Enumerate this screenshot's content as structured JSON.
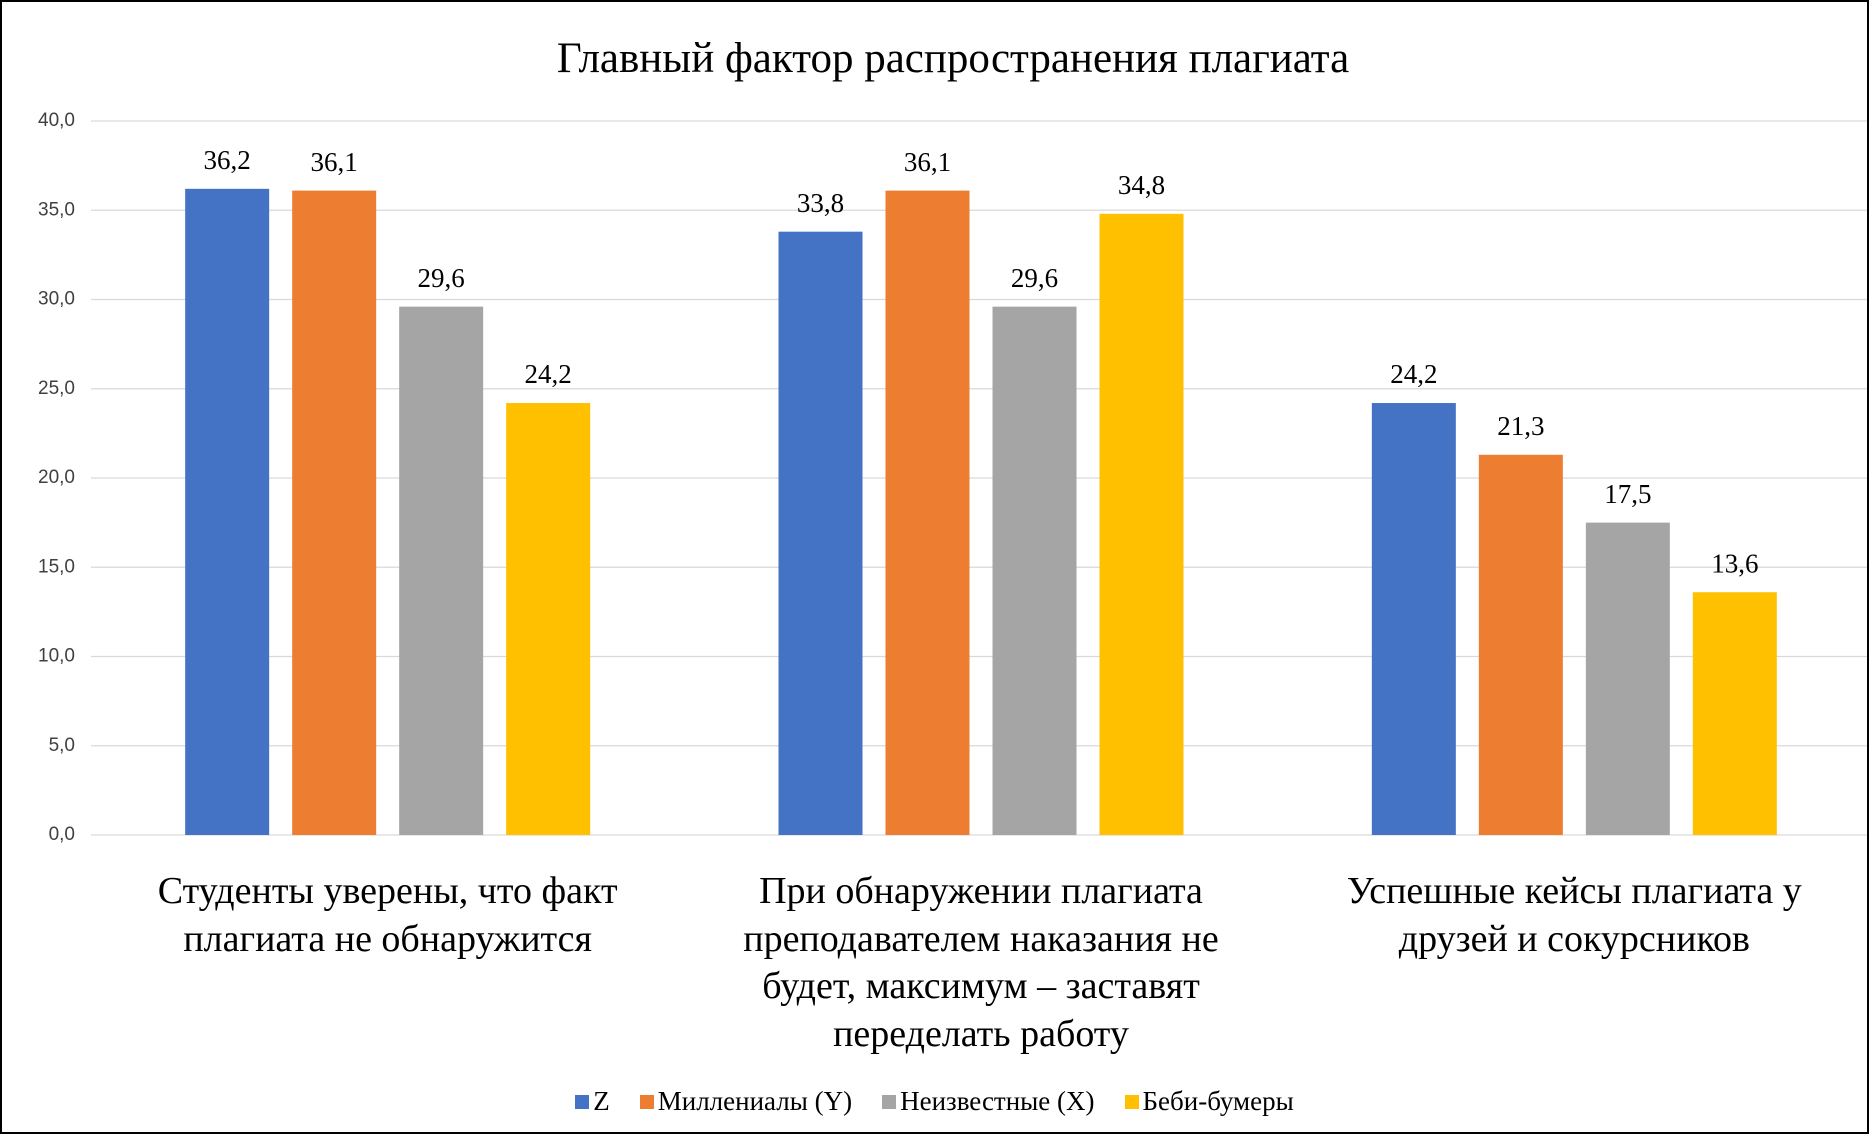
{
  "chart_data": {
    "type": "bar",
    "title": "Главный фактор распространения плагиата",
    "categories": [
      "Студенты уверены, что факт плагиата не обнаружится",
      "При обнаружении плагиата преподавателем наказания не будет, максимум – заставят переделать работу",
      "Успешные кейсы плагиата у друзей и сокурсников"
    ],
    "series": [
      {
        "name": "Z",
        "color": "#4472c4",
        "values": [
          36.2,
          33.8,
          24.2
        ],
        "value_labels": [
          "36,2",
          "33,8",
          "24,2"
        ]
      },
      {
        "name": "Миллениалы (Y)",
        "color": "#ed7d31",
        "values": [
          36.1,
          36.1,
          21.3
        ],
        "value_labels": [
          "36,1",
          "36,1",
          "21,3"
        ]
      },
      {
        "name": "Неизвестные (X)",
        "color": "#a5a5a5",
        "values": [
          29.6,
          29.6,
          17.5
        ],
        "value_labels": [
          "29,6",
          "29,6",
          "17,5"
        ]
      },
      {
        "name": "Беби-бумеры",
        "color": "#ffc000",
        "values": [
          24.2,
          34.8,
          13.6
        ],
        "value_labels": [
          "24,2",
          "34,8",
          "13,6"
        ]
      }
    ],
    "ylim": [
      0,
      40
    ],
    "yticks": [
      {
        "value": 0,
        "label": "0,0"
      },
      {
        "value": 5,
        "label": "5,0"
      },
      {
        "value": 10,
        "label": "10,0"
      },
      {
        "value": 15,
        "label": "15,0"
      },
      {
        "value": 20,
        "label": "20,0"
      },
      {
        "value": 25,
        "label": "25,0"
      },
      {
        "value": 30,
        "label": "30,0"
      },
      {
        "value": 35,
        "label": "35,0"
      },
      {
        "value": 40,
        "label": "40,0"
      }
    ],
    "grid": true,
    "legend": "bottom"
  }
}
